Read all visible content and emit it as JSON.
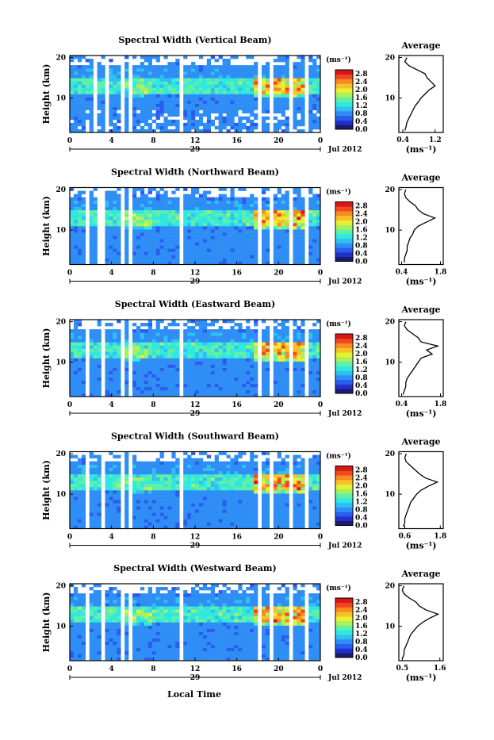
{
  "figure": {
    "xlabel": "Local Time",
    "average_title": "Average",
    "cbar_unit": "(ms⁻¹)",
    "avg_xlabel": "(ms⁻¹)",
    "ylabel": "Height (km)",
    "date_day": "29",
    "date_month_year": "Jul 2012"
  },
  "colorscale": [
    "#1a1a6e",
    "#2030c8",
    "#2a5cf0",
    "#2f8ef5",
    "#2fbff2",
    "#30e8e0",
    "#5ef0a8",
    "#a8f060",
    "#e8f030",
    "#f8c028",
    "#f88a20",
    "#f04820",
    "#d81818"
  ],
  "chart_data": [
    {
      "type": "heatmap",
      "title": "Spectral Width (Vertical Beam)",
      "ylabel": "Height (km)",
      "x_ticks": [
        "0",
        "4",
        "8",
        "12",
        "16",
        "20",
        "0"
      ],
      "y_ticks": [
        "20",
        "10"
      ],
      "xlim": [
        0,
        24
      ],
      "ylim": [
        1.5,
        20.5
      ],
      "colorbar": {
        "label": "(ms⁻¹)",
        "ticks": [
          "2.8",
          "2.4",
          "2.0",
          "1.6",
          "1.2",
          "0.8",
          "0.4",
          "0.0"
        ],
        "range": [
          0,
          3.0
        ]
      },
      "gaps": [
        [
          2.1,
          2.5
        ],
        [
          3.3,
          3.7
        ],
        [
          4.9,
          5.3
        ],
        [
          5.6,
          6.0
        ],
        [
          10.5,
          11.0
        ],
        [
          18.0,
          18.4
        ],
        [
          19.2,
          19.6
        ],
        [
          21.0,
          21.4
        ],
        [
          22.6,
          23.0
        ]
      ],
      "average": {
        "xticks": [
          "0.4",
          "1.2"
        ],
        "xlim": [
          0.3,
          1.4
        ],
        "yticks": [
          "20",
          "10"
        ],
        "height": [
          2,
          3,
          4,
          5,
          6,
          7,
          8,
          9,
          10,
          11,
          12,
          13,
          14,
          15,
          16,
          17,
          18,
          19,
          20
        ],
        "value": [
          0.45,
          0.48,
          0.5,
          0.55,
          0.6,
          0.65,
          0.7,
          0.78,
          0.85,
          0.95,
          1.05,
          1.2,
          1.1,
          1.0,
          0.95,
          0.75,
          0.55,
          0.45,
          0.5
        ]
      }
    },
    {
      "type": "heatmap",
      "title": "Spectral Width (Northward Beam)",
      "ylabel": "Height (km)",
      "x_ticks": [
        "0",
        "4",
        "8",
        "12",
        "16",
        "20",
        "0"
      ],
      "y_ticks": [
        "20",
        "10"
      ],
      "xlim": [
        0,
        24
      ],
      "ylim": [
        1.5,
        20.5
      ],
      "colorbar": {
        "label": "(ms⁻¹)",
        "ticks": [
          "2.8",
          "2.4",
          "2.0",
          "1.6",
          "1.2",
          "0.8",
          "0.4",
          "0.0"
        ],
        "range": [
          0,
          3.0
        ]
      },
      "gaps": [
        [
          1.6,
          2.0
        ],
        [
          2.8,
          3.2
        ],
        [
          4.9,
          5.3
        ],
        [
          5.6,
          6.0
        ],
        [
          10.5,
          11.0
        ],
        [
          17.9,
          18.3
        ],
        [
          19.2,
          19.6
        ],
        [
          21.0,
          21.4
        ],
        [
          22.6,
          23.0
        ]
      ],
      "average": {
        "xticks": [
          "0.4",
          "1.8"
        ],
        "xlim": [
          0.3,
          1.9
        ],
        "yticks": [
          "20",
          "10"
        ],
        "height": [
          2,
          3,
          4,
          5,
          6,
          7,
          8,
          9,
          10,
          11,
          12,
          13,
          14,
          15,
          16,
          17,
          18,
          19,
          20
        ],
        "value": [
          0.5,
          0.5,
          0.55,
          0.6,
          0.6,
          0.65,
          0.7,
          0.8,
          0.85,
          1.0,
          1.3,
          1.6,
          1.2,
          1.0,
          0.9,
          0.7,
          0.55,
          0.5,
          0.55
        ]
      }
    },
    {
      "type": "heatmap",
      "title": "Spectral Width (Eastward Beam)",
      "ylabel": "Height (km)",
      "x_ticks": [
        "0",
        "4",
        "8",
        "12",
        "16",
        "20",
        "0"
      ],
      "y_ticks": [
        "20",
        "10"
      ],
      "xlim": [
        0,
        24
      ],
      "ylim": [
        1.5,
        20.5
      ],
      "colorbar": {
        "label": "(ms⁻¹)",
        "ticks": [
          "2.8",
          "2.4",
          "2.0",
          "1.6",
          "1.2",
          "0.8",
          "0.4",
          "0.0"
        ],
        "range": [
          0,
          3.0
        ]
      },
      "gaps": [
        [
          1.6,
          2.0
        ],
        [
          2.9,
          3.3
        ],
        [
          4.9,
          5.3
        ],
        [
          5.6,
          6.0
        ],
        [
          10.5,
          11.0
        ],
        [
          18.0,
          18.4
        ],
        [
          19.2,
          19.6
        ],
        [
          21.0,
          21.4
        ],
        [
          22.6,
          23.0
        ]
      ],
      "average": {
        "xticks": [
          "0.4",
          "1.8"
        ],
        "xlim": [
          0.3,
          1.9
        ],
        "yticks": [
          "20",
          "10"
        ],
        "height": [
          2,
          3,
          4,
          5,
          6,
          7,
          8,
          9,
          10,
          11,
          12,
          13,
          14,
          15,
          16,
          17,
          18,
          19,
          20
        ],
        "value": [
          0.45,
          0.5,
          0.55,
          0.55,
          0.6,
          0.7,
          0.8,
          0.9,
          1.0,
          1.1,
          1.5,
          1.3,
          1.7,
          1.1,
          1.0,
          0.8,
          0.6,
          0.5,
          0.55
        ]
      }
    },
    {
      "type": "heatmap",
      "title": "Spectral Width (Southward Beam)",
      "ylabel": "Height (km)",
      "x_ticks": [
        "0",
        "4",
        "8",
        "12",
        "16",
        "20",
        "0"
      ],
      "y_ticks": [
        "20",
        "10"
      ],
      "xlim": [
        0,
        24
      ],
      "ylim": [
        1.5,
        20.5
      ],
      "colorbar": {
        "label": "(ms⁻¹)",
        "ticks": [
          "2.8",
          "2.4",
          "2.0",
          "1.6",
          "1.2",
          "0.8",
          "0.4",
          "0.0"
        ],
        "range": [
          0,
          3.0
        ]
      },
      "gaps": [
        [
          1.6,
          2.0
        ],
        [
          2.9,
          3.3
        ],
        [
          4.9,
          5.3
        ],
        [
          5.6,
          6.0
        ],
        [
          10.5,
          11.0
        ],
        [
          18.0,
          18.4
        ],
        [
          19.2,
          19.6
        ],
        [
          21.0,
          21.4
        ],
        [
          22.6,
          23.0
        ]
      ],
      "average": {
        "xticks": [
          "0.6",
          "1.8"
        ],
        "xlim": [
          0.4,
          1.9
        ],
        "yticks": [
          "20",
          "10"
        ],
        "height": [
          2,
          3,
          4,
          5,
          6,
          7,
          8,
          9,
          10,
          11,
          12,
          13,
          14,
          15,
          16,
          17,
          18,
          19,
          20
        ],
        "value": [
          0.55,
          0.6,
          0.6,
          0.65,
          0.7,
          0.75,
          0.8,
          0.9,
          1.0,
          1.15,
          1.4,
          1.7,
          1.3,
          1.1,
          0.95,
          0.8,
          0.65,
          0.6,
          0.65
        ]
      }
    },
    {
      "type": "heatmap",
      "title": "Spectral Width (Westward Beam)",
      "ylabel": "Height (km)",
      "x_ticks": [
        "0",
        "4",
        "8",
        "12",
        "16",
        "20",
        "0"
      ],
      "y_ticks": [
        "20",
        "10"
      ],
      "xlim": [
        0,
        24
      ],
      "ylim": [
        1.5,
        20.5
      ],
      "colorbar": {
        "label": "(ms⁻¹)",
        "ticks": [
          "2.8",
          "2.4",
          "2.0",
          "1.6",
          "1.2",
          "0.8",
          "0.4",
          "0.0"
        ],
        "range": [
          0,
          3.0
        ]
      },
      "gaps": [
        [
          1.6,
          2.0
        ],
        [
          2.9,
          3.3
        ],
        [
          4.9,
          5.3
        ],
        [
          5.6,
          6.0
        ],
        [
          10.5,
          11.0
        ],
        [
          18.0,
          18.4
        ],
        [
          19.2,
          19.6
        ],
        [
          21.0,
          21.4
        ],
        [
          22.6,
          23.0
        ]
      ],
      "average": {
        "xticks": [
          "0.5",
          "1.6"
        ],
        "xlim": [
          0.4,
          1.7
        ],
        "yticks": [
          "20",
          "10"
        ],
        "height": [
          2,
          3,
          4,
          5,
          6,
          7,
          8,
          9,
          10,
          11,
          12,
          13,
          14,
          15,
          16,
          17,
          18,
          19,
          20
        ],
        "value": [
          0.5,
          0.55,
          0.55,
          0.6,
          0.65,
          0.7,
          0.75,
          0.85,
          0.95,
          1.1,
          1.3,
          1.55,
          1.2,
          1.0,
          0.9,
          0.7,
          0.55,
          0.5,
          0.55
        ]
      }
    }
  ]
}
